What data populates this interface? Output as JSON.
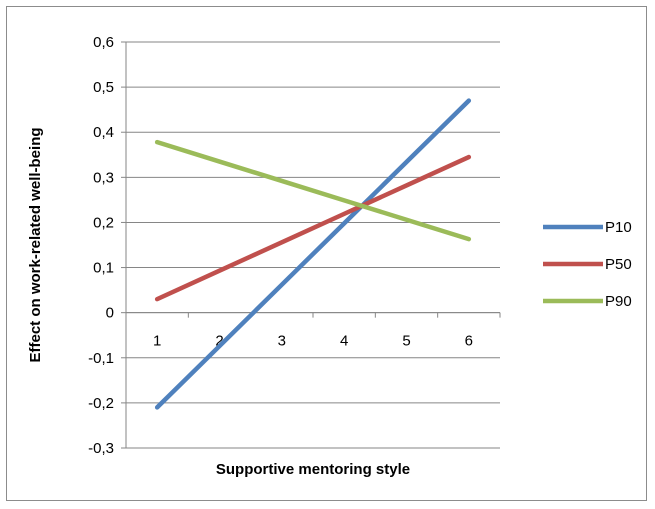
{
  "chart_data": {
    "type": "line",
    "title": "",
    "xlabel": "Supportive mentoring style",
    "ylabel": "Effect on work-related well-being",
    "categories": [
      "1",
      "2",
      "3",
      "4",
      "5",
      "6"
    ],
    "x": [
      1,
      2,
      3,
      4,
      5,
      6
    ],
    "ylim": [
      -0.3,
      0.6
    ],
    "yticks": [
      "-0,3",
      "-0,2",
      "-0,1",
      "0",
      "0,1",
      "0,2",
      "0,3",
      "0,4",
      "0,5",
      "0,6"
    ],
    "grid": true,
    "legend_position": "right",
    "series": [
      {
        "name": "P10",
        "color": "#4F81BD",
        "values": [
          -0.21,
          -0.074,
          0.062,
          0.198,
          0.334,
          0.47
        ]
      },
      {
        "name": "P50",
        "color": "#C0504D",
        "values": [
          0.03,
          0.093,
          0.156,
          0.219,
          0.282,
          0.345
        ]
      },
      {
        "name": "P90",
        "color": "#9BBB59",
        "values": [
          0.378,
          0.335,
          0.292,
          0.249,
          0.206,
          0.163
        ]
      }
    ]
  }
}
